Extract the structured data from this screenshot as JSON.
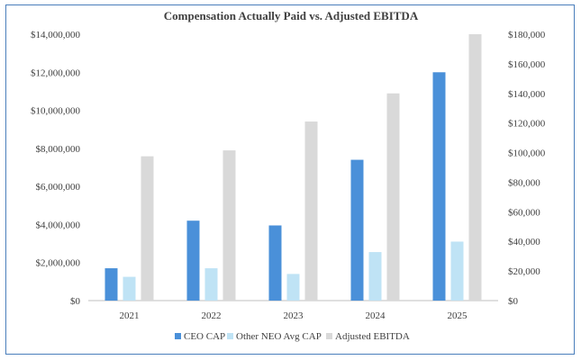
{
  "chart_data": {
    "type": "bar",
    "title": "Compensation Actually Paid vs. Adjusted EBITDA",
    "categories": [
      "2021",
      "2022",
      "2023",
      "2024",
      "2025"
    ],
    "series": [
      {
        "name": "CEO CAP",
        "axis": "left",
        "color": "#4a90d9",
        "values": [
          1700000,
          4200000,
          3950000,
          7400000,
          12000000
        ]
      },
      {
        "name": "Other NEO Avg CAP",
        "axis": "left",
        "color": "#bfe3f5",
        "values": [
          1250000,
          1700000,
          1400000,
          2550000,
          3100000
        ]
      },
      {
        "name": "Adjusted EBITDA",
        "axis": "right",
        "color": "#d9d9d9",
        "values": [
          97500,
          101500,
          121000,
          140000,
          180000
        ]
      }
    ],
    "ylim_left": [
      0,
      14000000
    ],
    "ylim_right": [
      0,
      180000
    ],
    "left_ticks": [
      "$0",
      "$2,000,000",
      "$4,000,000",
      "$6,000,000",
      "$8,000,000",
      "$10,000,000",
      "$12,000,000",
      "$14,000,000"
    ],
    "right_ticks": [
      "$0",
      "$20,000",
      "$40,000",
      "$60,000",
      "$80,000",
      "$100,000",
      "$120,000",
      "$140,000",
      "$160,000",
      "$180,000"
    ],
    "grid": false,
    "legend_position": "bottom"
  }
}
